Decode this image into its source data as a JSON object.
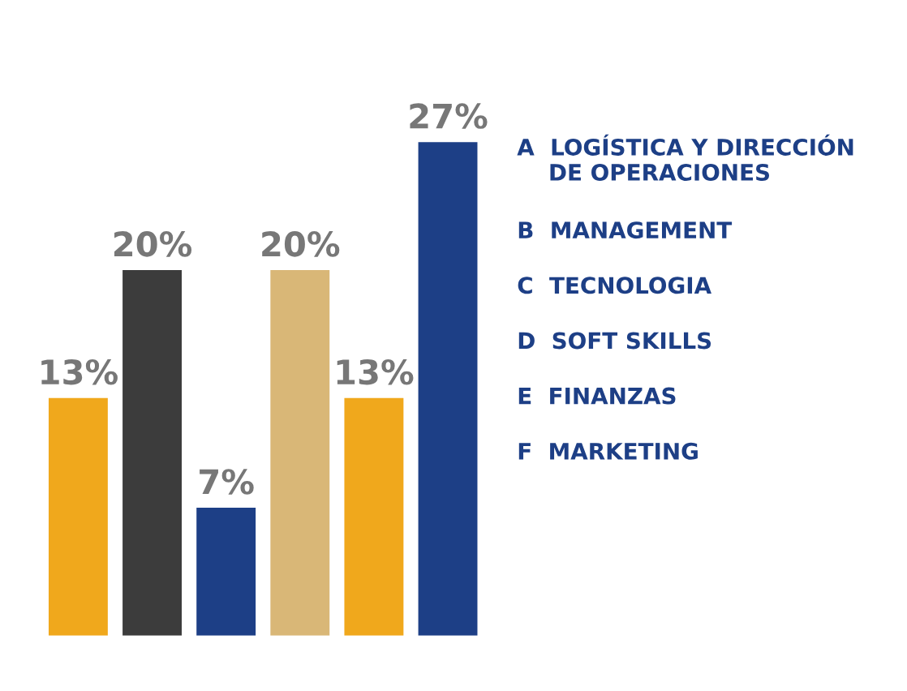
{
  "chart_data": {
    "type": "bar",
    "categories": [
      null,
      null,
      null,
      null,
      null,
      null
    ],
    "values": [
      13,
      20,
      7,
      20,
      13,
      27
    ],
    "value_labels": [
      "13%",
      "20%",
      "7%",
      "20%",
      "13%",
      "27%"
    ],
    "colors": [
      "#f0a81c",
      "#3c3c3c",
      "#1d3f86",
      "#d9b777",
      "#f0a81c",
      "#1d3f86"
    ],
    "annotations": [
      "A  LOGÍSTICA Y DIRECCIÓN\n    DE OPERACIONES",
      "B  MANAGEMENT",
      "C  TECNOLOGIA",
      "D  SOFT SKILLS",
      "E  FINANZAS",
      "F  MARKETING"
    ],
    "tick_labels": false,
    "grid": false
  }
}
